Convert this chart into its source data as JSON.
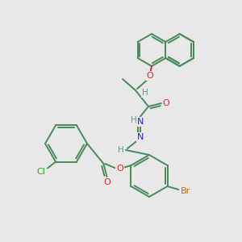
{
  "bg_color": "#e8e8e8",
  "bond_color": "#4a8a5a",
  "atom_colors": {
    "O": "#dd2222",
    "N": "#2222cc",
    "Cl": "#22aa22",
    "Br": "#cc6600",
    "H": "#5a9a9a",
    "C": "#4a8a5a"
  },
  "lw": 1.4,
  "doff": 2.8,
  "figsize": [
    3.0,
    3.0
  ],
  "dpi": 100
}
